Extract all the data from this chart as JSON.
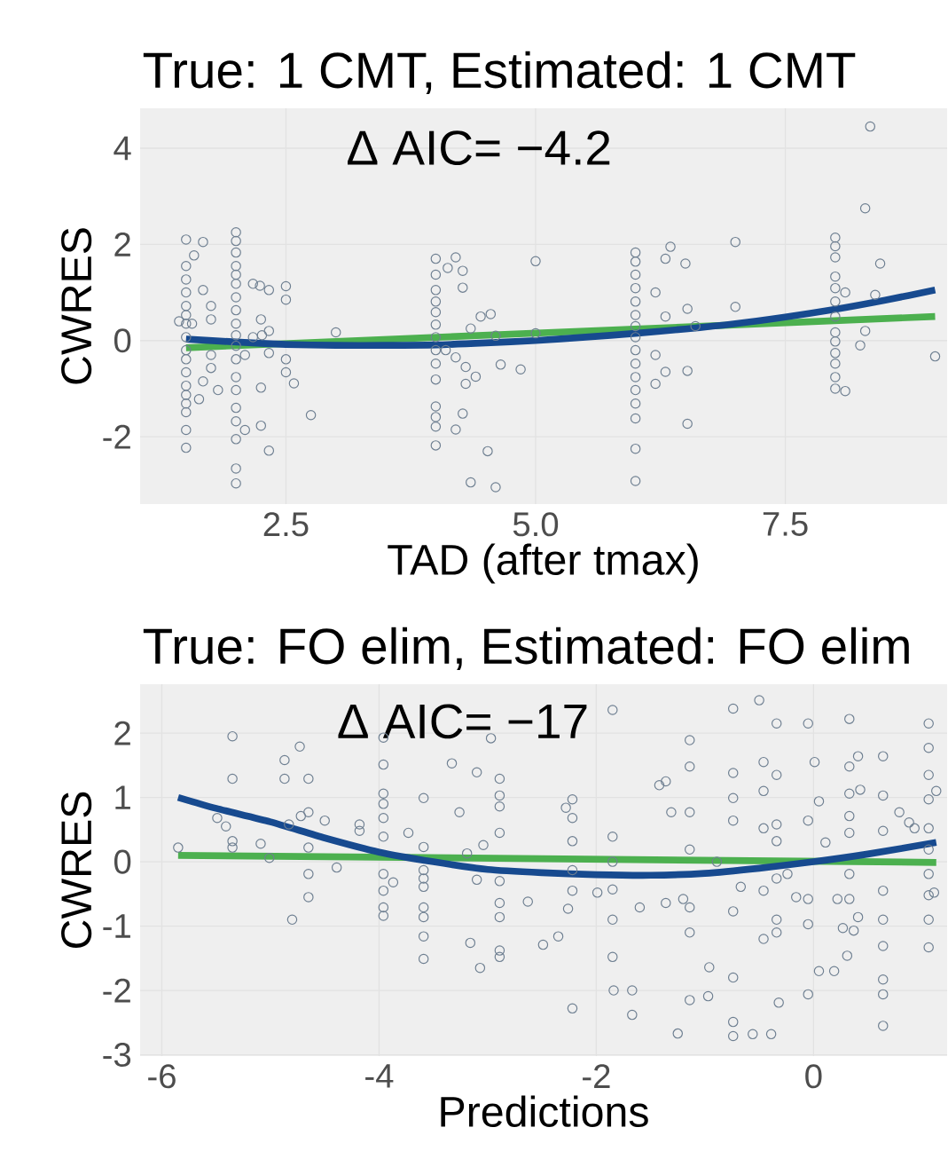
{
  "chart_data": [
    {
      "type": "scatter",
      "title": "True: 1 CMT, Estimated: 1 CMT",
      "xlabel": "TAD (after tmax)",
      "ylabel": "CWRES",
      "xlim": [
        1.04,
        9.12
      ],
      "ylim": [
        -3.4,
        4.83
      ],
      "xticks": [
        2.5,
        {
          "value": 5,
          "label": "5.0"
        },
        7.5
      ],
      "yticks": [
        -2,
        0,
        2,
        4
      ],
      "grid": true,
      "marker": "circle",
      "annotations": [
        "Δ AIC= −4.2"
      ],
      "series": [
        {
          "color": "#6e7f91",
          "x": [
            1.5,
            1.5,
            1.5,
            1.5,
            1.5,
            1.5,
            1.5,
            1.5,
            1.5,
            1.5,
            1.5,
            1.5,
            1.5,
            1.5,
            1.5,
            1.5,
            1.5,
            1.43,
            1.58,
            1.67,
            1.67,
            1.75,
            1.75,
            1.75,
            1.67,
            1.63,
            1.82,
            1.75,
            1.56,
            2.0,
            2.0,
            2.0,
            2.0,
            2.0,
            2.0,
            2.0,
            2.0,
            2.0,
            2.0,
            2.0,
            2.0,
            2.0,
            2.0,
            2.0,
            2.0,
            2.0,
            2.0,
            2.0,
            2.09,
            2.17,
            2.24,
            2.33,
            2.25,
            2.26,
            2.33,
            2.33,
            2.25,
            2.25,
            2.33,
            2.09,
            2.17,
            2.5,
            2.5,
            2.5,
            2.5,
            2.58,
            2.75,
            3.0,
            4.0,
            4.0,
            4.0,
            4.0,
            4.0,
            4.0,
            4.0,
            4.0,
            4.0,
            4.0,
            4.0,
            4.0,
            4.0,
            4.0,
            4.12,
            4.2,
            4.27,
            4.27,
            4.1,
            4.2,
            4.3,
            4.4,
            4.3,
            4.27,
            4.2,
            4.35,
            4.6,
            4.52,
            4.45,
            4.55,
            4.65,
            4.85,
            5.0,
            5.0,
            4.35,
            4.6,
            6.0,
            6.0,
            6.0,
            6.0,
            6.0,
            6.0,
            6.0,
            6.0,
            6.0,
            6.0,
            6.0,
            6.0,
            6.0,
            6.0,
            6.0,
            6.0,
            6.2,
            6.3,
            6.35,
            6.5,
            6.3,
            6.52,
            6.3,
            6.52,
            6.2,
            6.52,
            6.6,
            6.2,
            7.0,
            7.0,
            8.0,
            8.0,
            8.0,
            8.0,
            8.0,
            8.0,
            8.0,
            8.0,
            8.0,
            8.0,
            8.0,
            8.0,
            8.0,
            8.1,
            8.35,
            8.3,
            8.45,
            8.3,
            8.25,
            8.4,
            8.1,
            9.0
          ],
          "values": [
            2.1,
            1.55,
            1.27,
            1.0,
            0.72,
            0.53,
            0.35,
            0.07,
            -0.2,
            -0.39,
            -0.66,
            -0.94,
            -1.13,
            -1.31,
            -1.49,
            -1.86,
            -2.23,
            0.4,
            1.77,
            2.05,
            1.05,
            0.72,
            0.44,
            -0.3,
            -0.85,
            -1.22,
            -1.03,
            -0.57,
            0.35,
            2.25,
            2.07,
            1.83,
            1.55,
            1.37,
            1.18,
            0.9,
            0.63,
            0.35,
            0.11,
            -0.11,
            -0.39,
            -0.76,
            -1.03,
            -1.4,
            -1.68,
            -2.05,
            -2.66,
            -2.97,
            -1.86,
            1.18,
            1.14,
            1.05,
            0.44,
            0.11,
            0.2,
            -0.26,
            -0.98,
            -1.77,
            -2.29,
            -0.3,
            0.07,
            1.13,
            0.85,
            -0.39,
            -0.66,
            -0.89,
            -1.55,
            0.17,
            1.7,
            1.37,
            1.05,
            0.81,
            0.59,
            0.33,
            0.07,
            -0.2,
            -0.48,
            -0.81,
            -1.37,
            -1.59,
            -1.79,
            -2.18,
            1.51,
            1.73,
            1.45,
            1.1,
            -0.2,
            -0.35,
            -0.55,
            -0.75,
            -0.9,
            -1.52,
            -1.85,
            -2.95,
            -3.05,
            -2.3,
            0.5,
            0.55,
            -0.5,
            -0.6,
            1.65,
            0.15,
            0.25,
            0.1,
            1.83,
            1.64,
            1.37,
            1.09,
            0.81,
            0.53,
            0.3,
            0.07,
            -0.2,
            -0.48,
            -0.76,
            -1.03,
            -1.31,
            -1.62,
            -2.25,
            -2.92,
            1.0,
            1.7,
            1.95,
            1.6,
            0.5,
            0.66,
            -0.65,
            -0.63,
            -0.9,
            -1.73,
            0.3,
            -0.3,
            2.05,
            0.7,
            2.14,
            1.96,
            1.73,
            1.33,
            1.09,
            0.81,
            0.5,
            0.17,
            -0.02,
            -0.26,
            -0.48,
            -0.76,
            -1.0,
            -1.05,
            4.45,
            2.75,
            1.6,
            0.2,
            -0.1,
            0.95,
            1.0,
            -0.33
          ]
        },
        {
          "type": "line",
          "marker": "none",
          "color": "#4cb04f",
          "x": [
            1.5,
            9.0
          ],
          "values": [
            -0.15,
            0.5
          ]
        },
        {
          "type": "line",
          "marker": "none",
          "color": "#174a8f",
          "x": [
            1.5,
            2.0,
            2.5,
            3.0,
            3.5,
            4.0,
            4.5,
            5.0,
            5.5,
            6.0,
            6.5,
            7.0,
            7.5,
            8.0,
            8.5,
            9.0
          ],
          "values": [
            0.03,
            -0.03,
            -0.08,
            -0.1,
            -0.1,
            -0.09,
            -0.05,
            0.0,
            0.07,
            0.15,
            0.24,
            0.35,
            0.49,
            0.65,
            0.84,
            1.05
          ]
        }
      ]
    },
    {
      "type": "scatter",
      "title": "True: FO elim, Estimated: FO elim",
      "xlabel": "Predictions",
      "ylabel": "CWRES",
      "xlim": [
        -6.2,
        1.23
      ],
      "ylim": [
        -3.02,
        2.76
      ],
      "xticks": [
        -6,
        -4,
        -2,
        0
      ],
      "yticks": [
        -3,
        -2,
        -1,
        0,
        1,
        2
      ],
      "grid": true,
      "marker": "circle",
      "annotations": [
        "Δ AIC= −17"
      ],
      "series": [
        {
          "color": "#6e7f91",
          "x": [
            -5.85,
            -5.49,
            -5.41,
            -5.35,
            -5.35,
            -5.35,
            -5.35,
            -5.09,
            -5.01,
            -4.87,
            -4.87,
            -4.83,
            -4.8,
            -4.73,
            -4.72,
            -4.65,
            -4.65,
            -4.65,
            -4.65,
            -4.65,
            -4.5,
            -4.39,
            -4.18,
            -4.18,
            -3.96,
            -3.96,
            -3.96,
            -3.96,
            -3.96,
            -3.96,
            -3.96,
            -3.96,
            -3.96,
            -3.96,
            -3.87,
            -3.73,
            -3.59,
            -3.59,
            -3.59,
            -3.59,
            -3.59,
            -3.59,
            -3.59,
            -3.59,
            -3.59,
            -3.33,
            -3.26,
            -3.19,
            -3.16,
            -3.1,
            -3.1,
            -3.07,
            -3.04,
            -2.97,
            -2.89,
            -2.89,
            -2.89,
            -2.89,
            -2.89,
            -2.89,
            -2.89,
            -2.89,
            -2.89,
            -2.63,
            -2.49,
            -2.35,
            -2.28,
            -2.26,
            -2.22,
            -2.22,
            -2.22,
            -2.22,
            -2.22,
            -2.22,
            -1.99,
            -1.85,
            -1.85,
            -1.85,
            -1.85,
            -1.85,
            -1.85,
            -1.84,
            -1.67,
            -1.67,
            -1.6,
            -1.42,
            -1.36,
            -1.36,
            -1.31,
            -1.2,
            -1.14,
            -1.14,
            -1.14,
            -1.14,
            -1.14,
            -1.14,
            -1.14,
            -1.25,
            -0.97,
            -0.96,
            -0.89,
            -0.74,
            -0.74,
            -0.74,
            -0.74,
            -0.74,
            -0.74,
            -0.74,
            -0.74,
            -0.67,
            -0.56,
            -0.5,
            -0.46,
            -0.46,
            -0.46,
            -0.46,
            -0.46,
            -0.39,
            -0.34,
            -0.34,
            -0.34,
            -0.34,
            -0.34,
            -0.34,
            -0.34,
            -0.32,
            -0.24,
            -0.16,
            -0.05,
            -0.05,
            -0.05,
            -0.05,
            -0.05,
            0.01,
            0.05,
            0.05,
            0.11,
            0.19,
            0.22,
            0.27,
            0.31,
            0.33,
            0.33,
            0.33,
            0.33,
            0.33,
            0.33,
            0.33,
            0.37,
            0.41,
            0.43,
            0.41,
            0.64,
            0.64,
            0.64,
            0.64,
            0.64,
            0.64,
            0.64,
            0.64,
            0.64,
            0.79,
            0.88,
            0.93,
            1.06,
            1.06,
            1.06,
            1.06,
            1.06,
            1.06,
            1.06,
            1.06,
            1.06,
            1.06,
            1.11,
            1.13
          ],
          "values": [
            0.22,
            0.68,
            0.55,
            1.95,
            1.29,
            0.32,
            0.22,
            0.28,
            0.06,
            1.58,
            1.29,
            0.58,
            -0.9,
            1.79,
            0.71,
            1.29,
            0.77,
            0.22,
            -0.19,
            -0.55,
            0.64,
            -0.09,
            0.58,
            0.48,
            1.93,
            1.51,
            1.06,
            0.9,
            0.68,
            0.39,
            -0.19,
            -0.45,
            -0.71,
            -0.84,
            -0.32,
            0.45,
            0.99,
            0.23,
            -0.13,
            -0.26,
            -0.39,
            -0.71,
            -0.86,
            -1.16,
            -1.51,
            1.53,
            0.77,
            0.13,
            -1.26,
            1.39,
            -0.28,
            -1.65,
            0.26,
            1.92,
            1.29,
            1.03,
            0.86,
            0.45,
            -0.3,
            -0.64,
            -0.86,
            -1.38,
            -1.48,
            -0.62,
            -1.29,
            -1.16,
            0.84,
            -0.73,
            0.97,
            0.68,
            0.32,
            -0.13,
            -0.45,
            -2.28,
            -0.48,
            2.36,
            0.39,
            0.0,
            -0.43,
            -0.9,
            -1.48,
            -2.0,
            -2.0,
            -2.38,
            -0.71,
            1.19,
            1.25,
            -0.64,
            0.77,
            -0.58,
            1.89,
            1.48,
            0.77,
            0.19,
            -0.71,
            -1.1,
            -2.15,
            -2.67,
            -2.09,
            -1.64,
            0.0,
            2.38,
            1.38,
            0.99,
            0.64,
            -0.77,
            -1.8,
            -2.49,
            -2.71,
            -0.39,
            -2.68,
            2.51,
            1.55,
            1.1,
            0.52,
            -0.45,
            -1.2,
            -2.68,
            2.15,
            1.35,
            0.58,
            0.32,
            -0.26,
            -0.9,
            -1.1,
            -2.19,
            -0.19,
            -0.55,
            2.15,
            0.64,
            -0.58,
            -0.97,
            -2.06,
            1.55,
            0.94,
            -1.7,
            0.3,
            -1.7,
            -0.58,
            -1.03,
            -1.46,
            2.22,
            1.48,
            1.06,
            0.71,
            0.45,
            -0.19,
            -0.58,
            -1.07,
            1.64,
            1.12,
            -0.86,
            1.64,
            1.03,
            0.48,
            -0.45,
            -0.9,
            -1.31,
            -1.83,
            -2.06,
            -2.55,
            0.77,
            0.61,
            0.52,
            2.15,
            1.77,
            1.35,
            0.97,
            0.52,
            0.19,
            -0.19,
            -0.52,
            -0.9,
            -1.33,
            -0.48,
            1.1
          ]
        },
        {
          "type": "line",
          "marker": "none",
          "color": "#4cb04f",
          "x": [
            -5.85,
            1.13
          ],
          "values": [
            0.1,
            -0.01
          ]
        },
        {
          "type": "line",
          "marker": "none",
          "color": "#174a8f",
          "x": [
            -5.85,
            -5.5,
            -5.0,
            -4.5,
            -4.0,
            -3.5,
            -3.0,
            -2.5,
            -2.0,
            -1.5,
            -1.0,
            -0.5,
            0.0,
            0.5,
            1.13
          ],
          "values": [
            1.0,
            0.83,
            0.62,
            0.37,
            0.15,
            0.0,
            -0.12,
            -0.17,
            -0.2,
            -0.21,
            -0.18,
            -0.1,
            0.0,
            0.12,
            0.3
          ]
        }
      ]
    }
  ]
}
